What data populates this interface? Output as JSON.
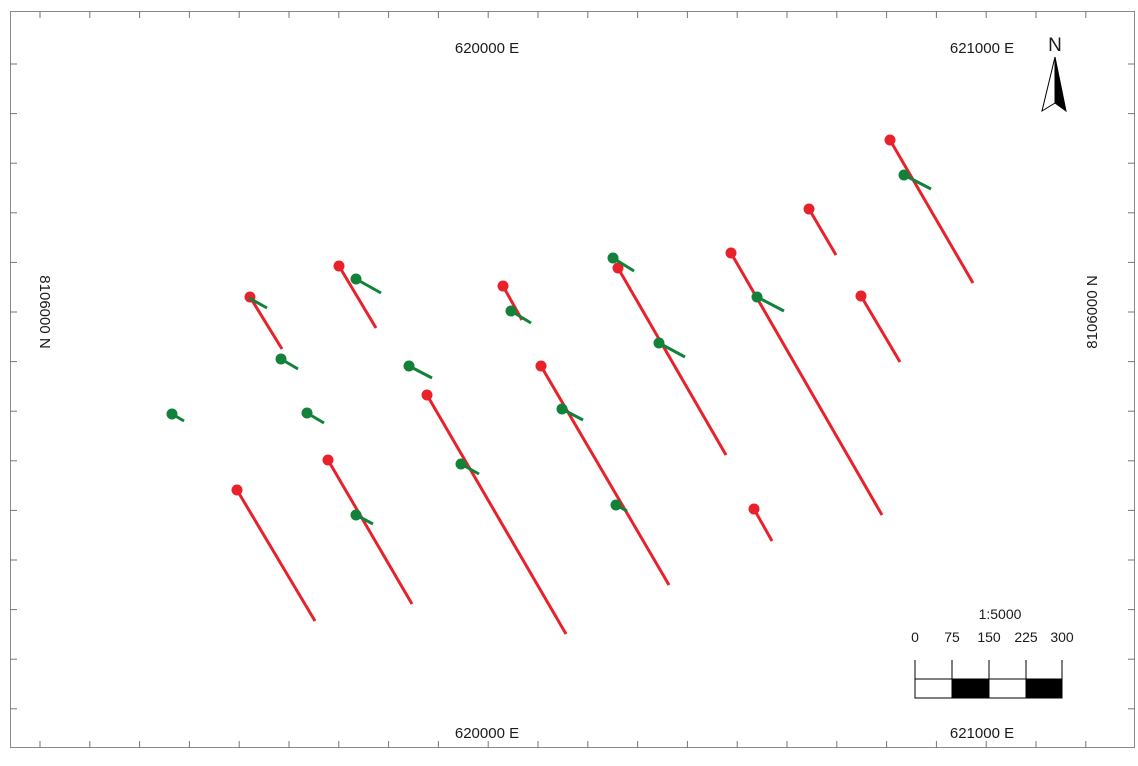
{
  "map": {
    "grid_labels": {
      "top_left": "620000 E",
      "top_right": "621000 E",
      "bottom_left": "620000 E",
      "bottom_right": "621000 E",
      "left": "8106000 N",
      "right": "8106000 N"
    },
    "north_arrow": {
      "label": "N",
      "icon": "north-arrow-icon"
    },
    "scale_bar": {
      "ratio": "1:5000",
      "ticks": [
        "0",
        "75",
        "150",
        "225",
        "300"
      ]
    },
    "colors": {
      "red_trace": "#e8212b",
      "green_trace": "#12813a",
      "frame": "#444444",
      "scale_fill": "#000000"
    }
  }
}
